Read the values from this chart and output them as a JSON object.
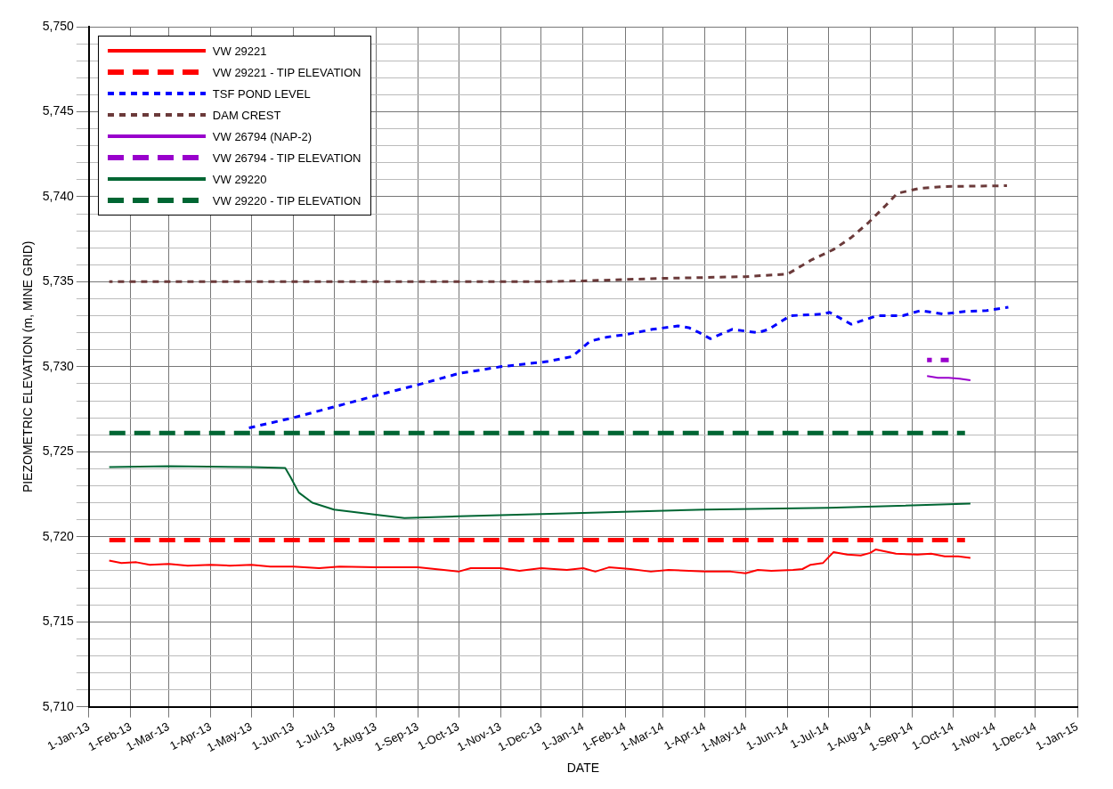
{
  "chart_data": {
    "type": "line",
    "xlabel": "DATE",
    "ylabel": "PIEZOMETRIC ELEVATION (m, MINE GRID)",
    "legend": "top left",
    "grid": true,
    "marker": "none",
    "xlim": [
      "2013-01-01",
      "2015-01-01"
    ],
    "xticks": [
      {
        "value": "2013-01-01",
        "label": "1-Jan-13"
      },
      {
        "value": "2013-02-01",
        "label": "1-Feb-13"
      },
      {
        "value": "2013-03-01",
        "label": "1-Mar-13"
      },
      {
        "value": "2013-04-01",
        "label": "1-Apr-13"
      },
      {
        "value": "2013-05-01",
        "label": "1-May-13"
      },
      {
        "value": "2013-06-01",
        "label": "1-Jun-13"
      },
      {
        "value": "2013-07-01",
        "label": "1-Jul-13"
      },
      {
        "value": "2013-08-01",
        "label": "1-Aug-13"
      },
      {
        "value": "2013-09-01",
        "label": "1-Sep-13"
      },
      {
        "value": "2013-10-01",
        "label": "1-Oct-13"
      },
      {
        "value": "2013-11-01",
        "label": "1-Nov-13"
      },
      {
        "value": "2013-12-01",
        "label": "1-Dec-13"
      },
      {
        "value": "2014-01-01",
        "label": "1-Jan-14"
      },
      {
        "value": "2014-02-01",
        "label": "1-Feb-14"
      },
      {
        "value": "2014-03-01",
        "label": "1-Mar-14"
      },
      {
        "value": "2014-04-01",
        "label": "1-Apr-14"
      },
      {
        "value": "2014-05-01",
        "label": "1-May-14"
      },
      {
        "value": "2014-06-01",
        "label": "1-Jun-14"
      },
      {
        "value": "2014-07-01",
        "label": "1-Jul-14"
      },
      {
        "value": "2014-08-01",
        "label": "1-Aug-14"
      },
      {
        "value": "2014-09-01",
        "label": "1-Sep-14"
      },
      {
        "value": "2014-10-01",
        "label": "1-Oct-14"
      },
      {
        "value": "2014-11-01",
        "label": "1-Nov-14"
      },
      {
        "value": "2014-12-01",
        "label": "1-Dec-14"
      },
      {
        "value": "2015-01-01",
        "label": "1-Jan-15"
      }
    ],
    "ylim": [
      5710,
      5750
    ],
    "yticks": [
      {
        "value": 5710,
        "label": "5,710"
      },
      {
        "value": 5711,
        "label": null
      },
      {
        "value": 5712,
        "label": null
      },
      {
        "value": 5713,
        "label": null
      },
      {
        "value": 5714,
        "label": null
      },
      {
        "value": 5715,
        "label": "5,715"
      },
      {
        "value": 5716,
        "label": null
      },
      {
        "value": 5717,
        "label": null
      },
      {
        "value": 5718,
        "label": null
      },
      {
        "value": 5719,
        "label": null
      },
      {
        "value": 5720,
        "label": "5,720"
      },
      {
        "value": 5721,
        "label": null
      },
      {
        "value": 5722,
        "label": null
      },
      {
        "value": 5723,
        "label": null
      },
      {
        "value": 5724,
        "label": null
      },
      {
        "value": 5725,
        "label": "5,725"
      },
      {
        "value": 5726,
        "label": null
      },
      {
        "value": 5727,
        "label": null
      },
      {
        "value": 5728,
        "label": null
      },
      {
        "value": 5729,
        "label": null
      },
      {
        "value": 5730,
        "label": "5,730"
      },
      {
        "value": 5731,
        "label": null
      },
      {
        "value": 5732,
        "label": null
      },
      {
        "value": 5733,
        "label": null
      },
      {
        "value": 5734,
        "label": null
      },
      {
        "value": 5735,
        "label": "5,735"
      },
      {
        "value": 5736,
        "label": null
      },
      {
        "value": 5737,
        "label": null
      },
      {
        "value": 5738,
        "label": null
      },
      {
        "value": 5739,
        "label": null
      },
      {
        "value": 5740,
        "label": "5,740"
      },
      {
        "value": 5741,
        "label": null
      },
      {
        "value": 5742,
        "label": null
      },
      {
        "value": 5743,
        "label": null
      },
      {
        "value": 5744,
        "label": null
      },
      {
        "value": 5745,
        "label": "5,745"
      },
      {
        "value": 5746,
        "label": null
      },
      {
        "value": 5747,
        "label": null
      },
      {
        "value": 5748,
        "label": null
      },
      {
        "value": 5749,
        "label": null
      },
      {
        "value": 5750,
        "label": "5,750"
      }
    ],
    "series": [
      {
        "name": "VW 29221",
        "color": "#ff0000",
        "line_style": "solid",
        "x": [
          "2013-01-16",
          "2013-01-25",
          "2013-02-05",
          "2013-02-15",
          "2013-03-01",
          "2013-03-15",
          "2013-04-01",
          "2013-04-15",
          "2013-05-01",
          "2013-05-15",
          "2013-06-01",
          "2013-06-20",
          "2013-07-05",
          "2013-08-01",
          "2013-09-01",
          "2013-09-20",
          "2013-10-01",
          "2013-10-10",
          "2013-11-01",
          "2013-11-15",
          "2013-12-01",
          "2013-12-20",
          "2014-01-01",
          "2014-01-10",
          "2014-01-20",
          "2014-02-05",
          "2014-02-20",
          "2014-03-05",
          "2014-04-01",
          "2014-04-20",
          "2014-05-01",
          "2014-05-10",
          "2014-05-20",
          "2014-06-05",
          "2014-06-12",
          "2014-06-18",
          "2014-06-27",
          "2014-07-05",
          "2014-07-15",
          "2014-07-25",
          "2014-08-01",
          "2014-08-05",
          "2014-08-20",
          "2014-09-05",
          "2014-09-15",
          "2014-09-25",
          "2014-10-05",
          "2014-10-14"
        ],
        "values": [
          5718.6,
          5718.45,
          5718.5,
          5718.35,
          5718.4,
          5718.3,
          5718.35,
          5718.3,
          5718.35,
          5718.25,
          5718.25,
          5718.15,
          5718.25,
          5718.2,
          5718.2,
          5718.05,
          5717.95,
          5718.15,
          5718.15,
          5718.0,
          5718.15,
          5718.05,
          5718.15,
          5717.95,
          5718.2,
          5718.1,
          5717.95,
          5718.05,
          5717.95,
          5717.95,
          5717.85,
          5718.05,
          5718.0,
          5718.05,
          5718.1,
          5718.35,
          5718.45,
          5719.1,
          5718.95,
          5718.9,
          5719.05,
          5719.25,
          5719.0,
          5718.95,
          5719.0,
          5718.85,
          5718.85,
          5718.75
        ]
      },
      {
        "name": "VW 29221 - TIP ELEVATION",
        "color": "#ff0000",
        "line_style": "dashed",
        "x": [
          "2013-01-16",
          "2014-10-10"
        ],
        "values": [
          5719.8,
          5719.8
        ]
      },
      {
        "name": "TSF POND LEVEL",
        "color": "#0000ff",
        "line_style": "dotted",
        "x": [
          "2013-04-29",
          "2013-06-01",
          "2013-08-01",
          "2013-09-04",
          "2013-10-01",
          "2013-11-01",
          "2013-12-05",
          "2013-12-24",
          "2014-01-06",
          "2014-01-19",
          "2014-02-02",
          "2014-02-21",
          "2014-03-12",
          "2014-03-20",
          "2014-03-28",
          "2014-04-05",
          "2014-04-21",
          "2014-05-10",
          "2014-05-18",
          "2014-06-03",
          "2014-06-27",
          "2014-07-02",
          "2014-07-10",
          "2014-07-18",
          "2014-08-06",
          "2014-08-25",
          "2014-09-07",
          "2014-09-24",
          "2014-10-10",
          "2014-10-26",
          "2014-11-11"
        ],
        "values": [
          5726.4,
          5727.0,
          5728.3,
          5729.0,
          5729.6,
          5730.0,
          5730.3,
          5730.6,
          5731.5,
          5731.75,
          5731.9,
          5732.2,
          5732.4,
          5732.3,
          5732.0,
          5731.65,
          5732.2,
          5732.0,
          5732.2,
          5733.0,
          5733.1,
          5733.2,
          5732.85,
          5732.5,
          5733.0,
          5733.0,
          5733.3,
          5733.1,
          5733.25,
          5733.3,
          5733.5
        ]
      },
      {
        "name": "DAM CREST",
        "color": "#6b3a3a",
        "line_style": "dotted",
        "x": [
          "2013-01-16",
          "2013-12-01",
          "2014-01-01",
          "2014-03-01",
          "2014-05-01",
          "2014-06-01",
          "2014-06-19",
          "2014-07-05",
          "2014-07-18",
          "2014-07-31",
          "2014-08-12",
          "2014-08-21",
          "2014-09-07",
          "2014-09-24",
          "2014-11-10"
        ],
        "values": [
          5735.0,
          5735.0,
          5735.05,
          5735.2,
          5735.3,
          5735.45,
          5736.3,
          5736.9,
          5737.6,
          5738.5,
          5739.45,
          5740.2,
          5740.5,
          5740.6,
          5740.65
        ]
      },
      {
        "name": "VW 26794 (NAP-2)",
        "color": "#9900cc",
        "line_style": "solid",
        "x": [
          "2014-09-12",
          "2014-09-20",
          "2014-09-28",
          "2014-10-06",
          "2014-10-14"
        ],
        "values": [
          5729.45,
          5729.35,
          5729.35,
          5729.3,
          5729.2
        ]
      },
      {
        "name": "VW 26794 - TIP ELEVATION",
        "color": "#9900cc",
        "line_style": "dashed",
        "x": [
          "2014-09-12",
          "2014-09-28"
        ],
        "values": [
          5730.4,
          5730.4
        ]
      },
      {
        "name": "VW 29220",
        "color": "#006633",
        "line_style": "solid",
        "x": [
          "2013-01-16",
          "2013-03-01",
          "2013-05-01",
          "2013-05-26",
          "2013-05-30",
          "2013-06-05",
          "2013-06-15",
          "2013-07-01",
          "2013-08-01",
          "2013-08-22",
          "2013-10-01",
          "2014-01-01",
          "2014-04-01",
          "2014-07-01",
          "2014-10-14"
        ],
        "values": [
          5724.1,
          5724.15,
          5724.1,
          5724.05,
          5723.5,
          5722.6,
          5722.0,
          5721.6,
          5721.3,
          5721.1,
          5721.2,
          5721.4,
          5721.6,
          5721.7,
          5721.95
        ]
      },
      {
        "name": "VW 29220 - TIP ELEVATION",
        "color": "#006633",
        "line_style": "dashed",
        "x": [
          "2013-01-16",
          "2014-10-10"
        ],
        "values": [
          5726.1,
          5726.1
        ]
      }
    ]
  }
}
